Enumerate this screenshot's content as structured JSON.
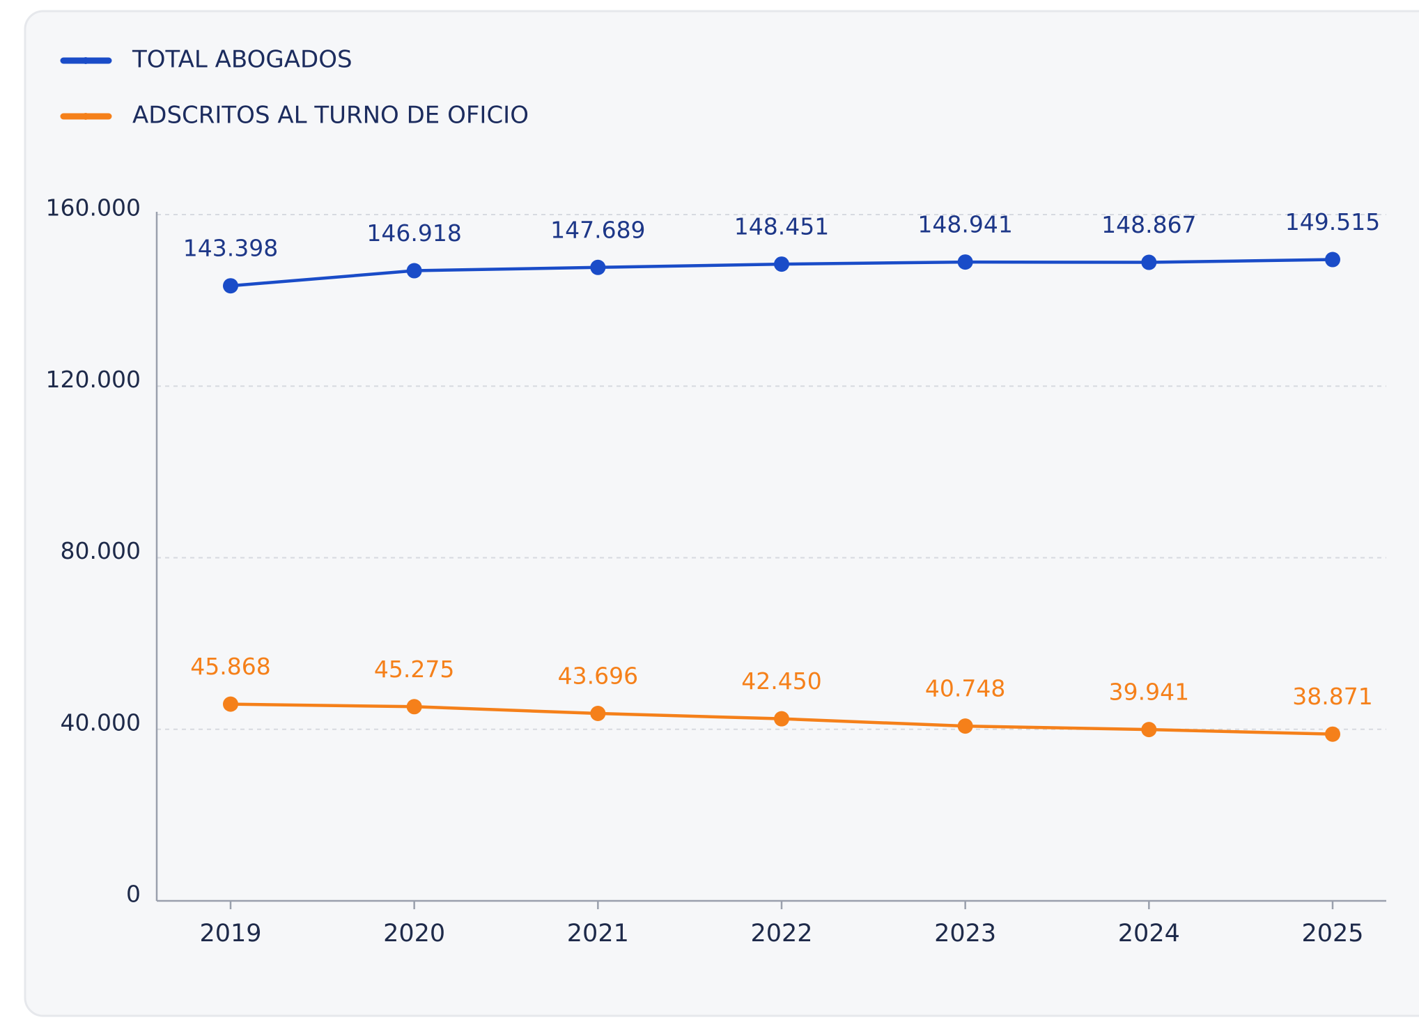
{
  "chart_data": {
    "type": "line",
    "categories": [
      "2019",
      "2020",
      "2021",
      "2022",
      "2023",
      "2024",
      "2025"
    ],
    "series": [
      {
        "name": "TOTAL ABOGADOS",
        "color": "#1a4cc8",
        "values": [
          143398,
          146918,
          147689,
          148451,
          148941,
          148867,
          149515
        ],
        "value_labels": [
          "143.398",
          "146.918",
          "147.689",
          "148.451",
          "148.941",
          "148.867",
          "149.515"
        ]
      },
      {
        "name": "ADSCRITOS AL TURNO DE OFICIO",
        "color": "#f5801a",
        "values": [
          45868,
          45275,
          43696,
          42450,
          40748,
          39941,
          38871
        ],
        "value_labels": [
          "45.868",
          "45.275",
          "43.696",
          "42.450",
          "40.748",
          "39.941",
          "38.871"
        ]
      }
    ],
    "ylim": [
      0,
      160000
    ],
    "yticks": [
      0,
      {
        "value": 40000,
        "label": "40.000"
      },
      {
        "value": 80000,
        "label": "80.000"
      },
      {
        "value": 120000,
        "label": "120.000"
      },
      {
        "value": 160000,
        "label": "160.000"
      }
    ],
    "grid": true,
    "legend": "top-left"
  }
}
